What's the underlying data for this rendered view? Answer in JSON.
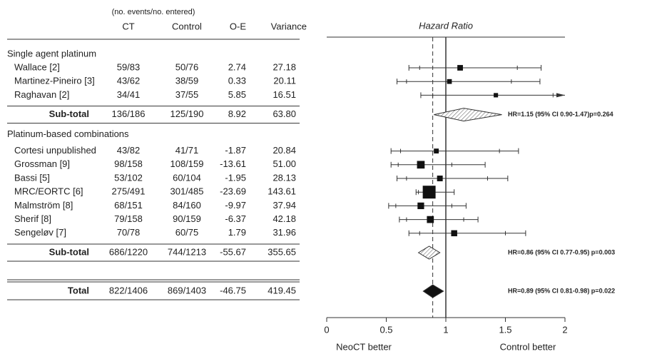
{
  "chart_data": {
    "type": "forest",
    "header_note": "(no. events/no. entered)",
    "columns": [
      "CT",
      "Control",
      "O-E",
      "Variance"
    ],
    "plot_title": "Hazard Ratio",
    "xlim": [
      0,
      2
    ],
    "xticks": [
      0,
      0.5,
      1,
      1.5,
      2
    ],
    "reference": 1,
    "x_label_left": "NeoCT better",
    "x_label_right": "Control better",
    "groups": [
      {
        "name": "Single agent platinum",
        "studies": [
          {
            "name": "Wallace [2]",
            "ct": "59/83",
            "control": "50/76",
            "oe": 2.74,
            "variance": 27.18,
            "hr": 1.12,
            "ci95": [
              0.78,
              1.6
            ],
            "ci99": [
              0.69,
              1.8
            ]
          },
          {
            "name": "Martinez-Pineiro [3]",
            "ct": "43/62",
            "control": "38/59",
            "oe": 0.33,
            "variance": 20.11,
            "hr": 1.03,
            "ci95": [
              0.67,
              1.55
            ],
            "ci99": [
              0.59,
              1.79
            ]
          },
          {
            "name": "Raghavan [2]",
            "ct": "34/41",
            "control": "37/55",
            "oe": 5.85,
            "variance": 16.51,
            "hr": 1.42,
            "ci95": [
              0.89,
              1.9
            ],
            "ci99": [
              0.79,
              2.3
            ]
          }
        ],
        "subtotal": {
          "label": "Sub-total",
          "ct": "136/186",
          "control": "125/190",
          "oe": 8.92,
          "variance": {
            "value": 63.8,
            "label": "63.80"
          },
          "hr": 1.15,
          "ci": [
            0.9,
            1.47
          ],
          "summary_label": "HR=1.15 (95% CI 0.90-1.47)p=0.264"
        }
      },
      {
        "name": "Platinum-based combinations",
        "studies": [
          {
            "name": "Cortesi unpublished",
            "ct": "43/82",
            "control": "41/71",
            "oe": -1.87,
            "variance": 20.84,
            "hr": 0.92,
            "ci95": [
              0.62,
              1.45
            ],
            "ci99": [
              0.54,
              1.61
            ]
          },
          {
            "name": "Grossman [9]",
            "ct": "98/158",
            "control": "108/159",
            "oe": -13.61,
            "variance": {
              "value": 51,
              "label": "51.00"
            },
            "hr": 0.79,
            "ci95": [
              0.6,
              1.05
            ],
            "ci99": [
              0.54,
              1.33
            ]
          },
          {
            "name": "Bassi [5]",
            "ct": "53/102",
            "control": "60/104",
            "oe": -1.95,
            "variance": 28.13,
            "hr": 0.95,
            "ci95": [
              0.67,
              1.35
            ],
            "ci99": [
              0.59,
              1.52
            ]
          },
          {
            "name": "MRC/EORTC [6]",
            "ct": "275/491",
            "control": "301/485",
            "oe": -23.69,
            "variance": 143.61,
            "hr": 0.86,
            "ci95": [
              0.77,
              1.0
            ],
            "ci99": [
              0.75,
              1.07
            ]
          },
          {
            "name": "Malmström [8]",
            "ct": "68/151",
            "control": "84/160",
            "oe": -9.97,
            "variance": 37.94,
            "hr": 0.79,
            "ci95": [
              0.58,
              1.05
            ],
            "ci99": [
              0.52,
              1.17
            ]
          },
          {
            "name": "Sherif [8]",
            "ct": "79/158",
            "control": "90/159",
            "oe": -6.37,
            "variance": 42.18,
            "hr": 0.87,
            "ci95": [
              0.67,
              1.15
            ],
            "ci99": [
              0.61,
              1.27
            ]
          },
          {
            "name": "Sengeløv [7]",
            "ct": "70/78",
            "control": "60/75",
            "oe": 1.79,
            "variance": 31.96,
            "hr": 1.07,
            "ci95": [
              0.78,
              1.5
            ],
            "ci99": [
              0.69,
              1.67
            ]
          }
        ],
        "subtotal": {
          "label": "Sub-total",
          "ct": "686/1220",
          "control": "744/1213",
          "oe": -55.67,
          "variance": 355.65,
          "hr": 0.86,
          "ci": [
            0.77,
            0.95
          ],
          "summary_label": "HR=0.86 (95% CI 0.77-0.95) p=0.003"
        }
      }
    ],
    "total": {
      "label": "Total",
      "ct": "822/1406",
      "control": "869/1403",
      "oe": -46.75,
      "variance": 419.45,
      "hr": 0.89,
      "ci": [
        0.81,
        0.98
      ],
      "summary_label": "HR=0.89 (95% CI 0.81-0.98) p=0.022"
    }
  }
}
